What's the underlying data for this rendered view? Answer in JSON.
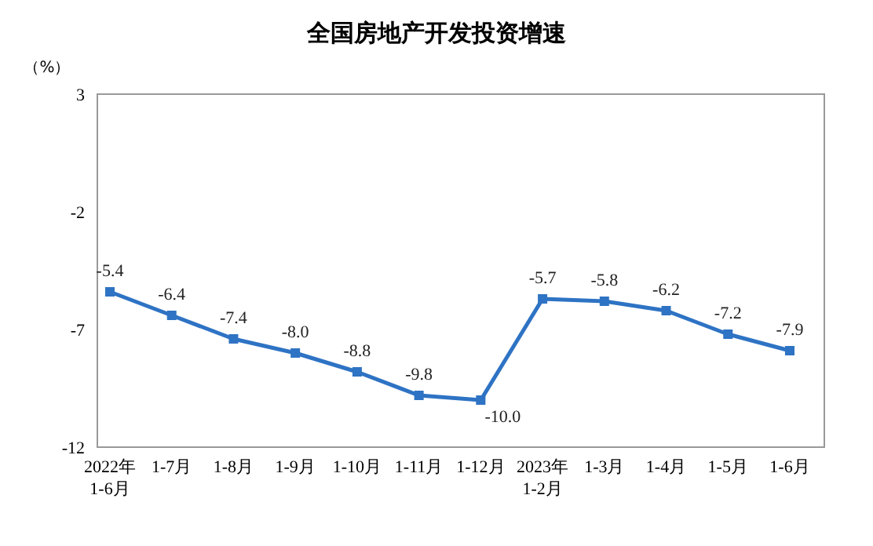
{
  "chart_data": {
    "type": "line",
    "title": "全国房地产开发投资增速",
    "ylabel": "（%）",
    "categories": [
      "2022年\n1-6月",
      "1-7月",
      "1-8月",
      "1-9月",
      "1-10月",
      "1-11月",
      "1-12月",
      "2023年\n1-2月",
      "1-3月",
      "1-4月",
      "1-5月",
      "1-6月"
    ],
    "series": [
      {
        "color": "#2e73c4",
        "values": [
          -5.4,
          -6.4,
          -7.4,
          -8.0,
          -8.8,
          -9.8,
          -10.0,
          -5.7,
          -5.8,
          -6.2,
          -7.2,
          -7.9
        ],
        "value_labels": [
          "-5.4",
          "-6.4",
          "-7.4",
          "-8.0",
          "-8.8",
          "-9.8",
          "-10.0",
          "-5.7",
          "-5.8",
          "-6.2",
          "-7.2",
          "-7.9"
        ]
      }
    ],
    "ylim": [
      -12,
      3
    ],
    "yticks": [
      -12,
      -7,
      -2,
      3
    ],
    "marker": "square",
    "line_style": "solid",
    "grid": false
  }
}
